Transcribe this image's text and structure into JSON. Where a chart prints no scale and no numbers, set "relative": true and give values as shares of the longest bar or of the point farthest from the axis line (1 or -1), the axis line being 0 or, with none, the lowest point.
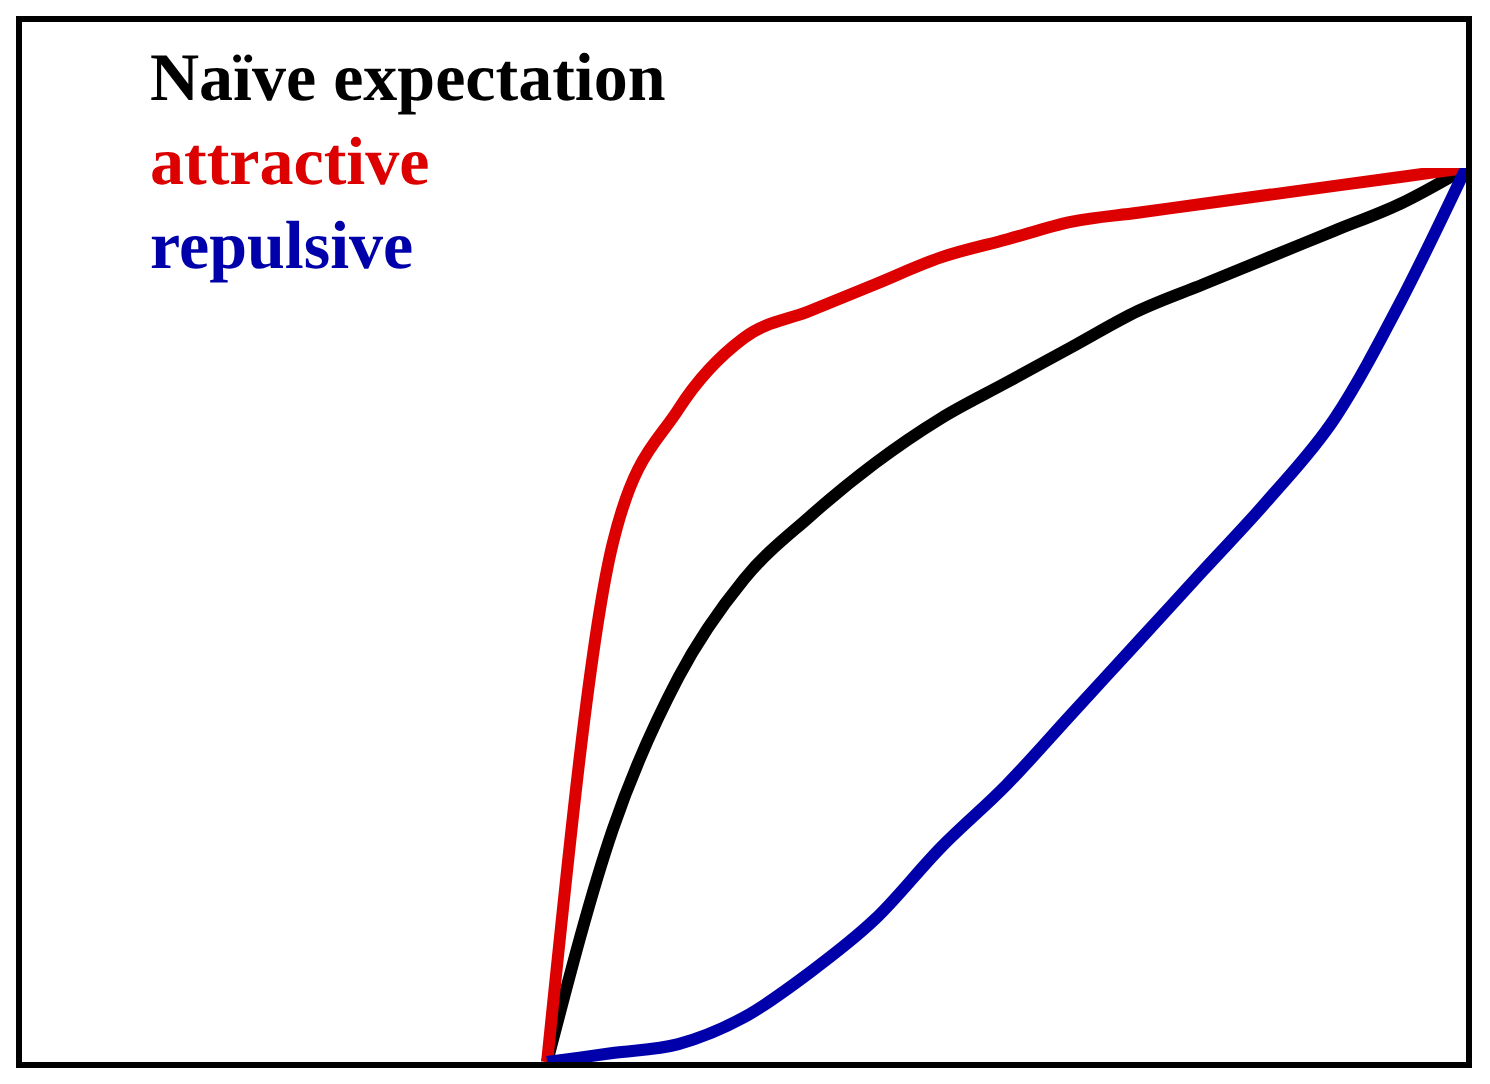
{
  "chart_data": {
    "type": "line",
    "relative": true,
    "legend": "top left",
    "grid": false,
    "marker": "none",
    "line_style": "solid",
    "categories": [
      null,
      null,
      null,
      null,
      null,
      null,
      null,
      null,
      null,
      null,
      null,
      null,
      null,
      null,
      null,
      null,
      null,
      null,
      null,
      null,
      null,
      null,
      null
    ],
    "series": [
      {
        "name": "Naïve expectation",
        "color": "#000000",
        "values": [
          null,
          null,
          null,
          null,
          null,
          null,
          null,
          null,
          0,
          0.26,
          0.43,
          0.54,
          0.61,
          0.67,
          0.72,
          0.76,
          0.8,
          0.84,
          0.87,
          0.9,
          0.93,
          0.96,
          1
        ]
      },
      {
        "name": "attractive",
        "color": "#dd0000",
        "values": [
          null,
          null,
          null,
          null,
          null,
          null,
          null,
          null,
          0,
          0.58,
          0.73,
          0.81,
          0.84,
          0.87,
          0.9,
          0.92,
          0.94,
          0.95,
          0.96,
          0.97,
          0.98,
          0.99,
          1
        ]
      },
      {
        "name": "repulsive",
        "color": "#0000aa",
        "values": [
          null,
          null,
          null,
          null,
          null,
          null,
          null,
          null,
          0,
          0.01,
          0.02,
          0.05,
          0.1,
          0.16,
          0.24,
          0.31,
          0.39,
          0.47,
          0.55,
          0.63,
          0.72,
          0.85,
          1
        ]
      }
    ]
  }
}
